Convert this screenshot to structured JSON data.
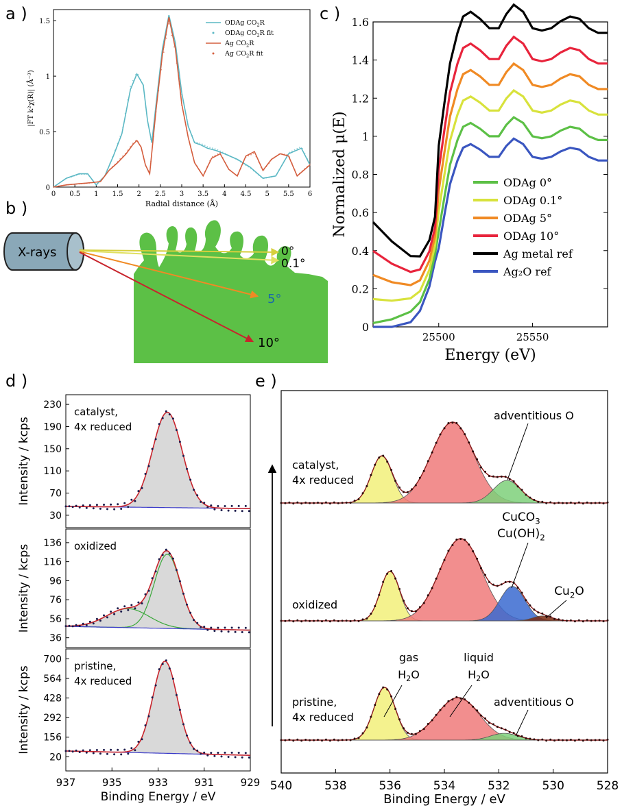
{
  "panel_letters": {
    "a": "a )",
    "b": "b )",
    "c": "c )",
    "d": "d )",
    "e": "e )"
  },
  "chart_data": [
    {
      "panel": "a",
      "type": "line",
      "xlabel": "Radial distance (Å)",
      "ylabel": "|FT k²χ(R)| (Å⁻³)",
      "xlim": [
        0,
        6
      ],
      "ylim": [
        0,
        1.6
      ],
      "xticks": [
        "0",
        "0.5",
        "1",
        "1.5",
        "2",
        "2.5",
        "3",
        "3.5",
        "4",
        "4.5",
        "5",
        "5.5",
        "6"
      ],
      "yticks": [
        "0",
        "0.5",
        "1",
        "1.5"
      ],
      "legend_position": "top-right",
      "legend": [
        "ODAg CO2R",
        "ODAg CO2R fit",
        "Ag CO2R",
        "Ag CO2R fit"
      ],
      "colors": {
        "odag": "#5bb8c4",
        "ag": "#d45e3e"
      },
      "series": [
        {
          "name": "ODAg CO2R",
          "x": [
            0,
            0.3,
            0.6,
            0.8,
            1.0,
            1.2,
            1.4,
            1.6,
            1.8,
            1.95,
            2.1,
            2.2,
            2.3,
            2.4,
            2.55,
            2.7,
            2.85,
            3.0,
            3.15,
            3.3,
            3.45,
            3.6,
            3.8,
            4.0,
            4.3,
            4.6,
            4.9,
            5.2,
            5.5,
            5.8,
            6.0
          ],
          "y": [
            0,
            0.08,
            0.12,
            0.12,
            0.02,
            0.1,
            0.28,
            0.48,
            0.88,
            1.02,
            0.92,
            0.6,
            0.4,
            0.75,
            1.25,
            1.55,
            1.3,
            0.85,
            0.55,
            0.4,
            0.38,
            0.35,
            0.33,
            0.3,
            0.25,
            0.18,
            0.08,
            0.1,
            0.3,
            0.35,
            0.2
          ]
        },
        {
          "name": "Ag CO2R",
          "x": [
            0,
            0.3,
            0.6,
            0.9,
            1.1,
            1.3,
            1.5,
            1.7,
            1.85,
            1.95,
            2.05,
            2.15,
            2.25,
            2.4,
            2.55,
            2.7,
            2.85,
            3.0,
            3.15,
            3.3,
            3.5,
            3.7,
            3.9,
            4.1,
            4.3,
            4.5,
            4.7,
            4.9,
            5.1,
            5.3,
            5.5,
            5.7,
            6.0
          ],
          "y": [
            0,
            0.02,
            0.03,
            0.04,
            0.05,
            0.15,
            0.22,
            0.3,
            0.38,
            0.42,
            0.36,
            0.2,
            0.12,
            0.7,
            1.2,
            1.53,
            1.25,
            0.75,
            0.45,
            0.22,
            0.1,
            0.26,
            0.3,
            0.16,
            0.1,
            0.28,
            0.32,
            0.15,
            0.25,
            0.3,
            0.28,
            0.1,
            0.2
          ]
        }
      ]
    },
    {
      "panel": "b",
      "type": "diagram",
      "source_label": "X-rays",
      "angles": [
        "0°",
        "0.1°",
        "5°",
        "10°"
      ],
      "arrow_colors": [
        "#d6cf3c",
        "#e0e060",
        "#f08a24",
        "#c8242c"
      ]
    },
    {
      "panel": "c",
      "type": "line",
      "xlabel": "Energy (eV)",
      "ylabel": "Normalized  μ(E)",
      "xlim": [
        25465,
        25590
      ],
      "ylim": [
        0,
        1.6
      ],
      "xticks": [
        "25500",
        "25550"
      ],
      "yticks": [
        "0",
        "0.2",
        "0.4",
        "0.6",
        "0.8",
        "1",
        "1.2",
        "1.4",
        "1.6"
      ],
      "legend_position": "center-right",
      "series": [
        {
          "name": "ODAg 0°",
          "color": "#5cc046",
          "offset": 0.0
        },
        {
          "name": "ODAg 0.1°",
          "color": "#d8e23c",
          "offset": 0.1
        },
        {
          "name": "ODAg 5°",
          "color": "#f08a24",
          "offset": 0.2
        },
        {
          "name": "ODAg 10°",
          "color": "#e8243c",
          "offset": 0.3
        },
        {
          "name": "Ag metal ref",
          "color": "#000000",
          "offset": 0.42
        },
        {
          "name": "Ag₂O ref",
          "color": "#3a56c0",
          "offset": -0.08
        }
      ],
      "base_curve": {
        "x": [
          25465,
          25475,
          25485,
          25490,
          25495,
          25498,
          25500,
          25503,
          25506,
          25510,
          25513,
          25517,
          25522,
          25527,
          25532,
          25536,
          25540,
          25545,
          25550,
          25555,
          25560,
          25565,
          25570,
          25575,
          25580,
          25585,
          25590
        ],
        "y": [
          0.02,
          0.04,
          0.08,
          0.13,
          0.25,
          0.38,
          0.5,
          0.68,
          0.85,
          0.98,
          1.05,
          1.07,
          1.04,
          1.0,
          1.0,
          1.06,
          1.1,
          1.07,
          1.0,
          0.99,
          1.0,
          1.03,
          1.05,
          1.04,
          1.0,
          0.98,
          0.98
        ]
      }
    },
    {
      "panel": "d",
      "type": "line",
      "xlabel": "Binding Energy / eV",
      "ylabel": "Intensity / kcps",
      "xlim": [
        937,
        929
      ],
      "xticks": [
        "937",
        "935",
        "933",
        "931",
        "929"
      ],
      "subplots": [
        {
          "label_lines": [
            "catalyst,",
            "4x reduced"
          ],
          "yticks": [
            "230",
            "190",
            "150",
            "110",
            "70",
            "30"
          ],
          "ylim": [
            15,
            240
          ],
          "components": [
            {
              "center": 932.6,
              "amp": 172,
              "width": 0.9
            }
          ],
          "background": [
            46,
            42
          ]
        },
        {
          "label_lines": [
            "oxidized"
          ],
          "yticks": [
            "136",
            "116",
            "96",
            "76",
            "56",
            "36"
          ],
          "ylim": [
            30,
            146
          ],
          "components": [
            {
              "center": 932.6,
              "amp": 78,
              "width": 0.8
            },
            {
              "center": 934.3,
              "amp": 20,
              "width": 1.3
            }
          ],
          "background": [
            48,
            44
          ]
        },
        {
          "label_lines": [
            "pristine,",
            "4x reduced"
          ],
          "yticks": [
            "700",
            "564",
            "428",
            "292",
            "156",
            "20"
          ],
          "ylim": [
            -50,
            740
          ],
          "components": [
            {
              "center": 932.7,
              "amp": 640,
              "width": 0.75
            }
          ],
          "background": [
            60,
            30
          ]
        }
      ]
    },
    {
      "panel": "e",
      "type": "line",
      "xlabel": "Binding Energy / eV",
      "xlim": [
        540,
        528
      ],
      "xticks": [
        "540",
        "538",
        "536",
        "534",
        "532",
        "530",
        "528"
      ],
      "subplots": [
        {
          "label_lines": [
            "catalyst,",
            "4x reduced"
          ],
          "components": [
            {
              "name": "gas H2O",
              "center": 536.3,
              "amp": 0.58,
              "width": 0.55,
              "color": "#f2f07a"
            },
            {
              "name": "liquid H2O",
              "center": 533.7,
              "amp": 1.0,
              "width": 1.1,
              "color": "#f07a7a"
            },
            {
              "name": "adventitious O",
              "center": 531.7,
              "amp": 0.28,
              "width": 0.7,
              "color": "#7ed07a"
            }
          ],
          "annotations": [
            "adventitious O"
          ]
        },
        {
          "label_lines": [
            "oxidized"
          ],
          "components": [
            {
              "name": "gas H2O",
              "center": 536.0,
              "amp": 0.6,
              "width": 0.5,
              "color": "#f2f07a"
            },
            {
              "name": "liquid H2O",
              "center": 533.4,
              "amp": 1.0,
              "width": 1.1,
              "color": "#f07a7a"
            },
            {
              "name": "CuCO3 Cu(OH)2",
              "center": 531.5,
              "amp": 0.42,
              "width": 0.65,
              "color": "#3a6ad0"
            },
            {
              "name": "Cu2O",
              "center": 530.4,
              "amp": 0.06,
              "width": 0.5,
              "color": "#7a2a10"
            }
          ],
          "annotations": [
            "CuCO3",
            "Cu(OH)2",
            "Cu2O"
          ]
        },
        {
          "label_lines": [
            "pristine,",
            "4x reduced"
          ],
          "components": [
            {
              "name": "gas H2O",
              "center": 536.2,
              "amp": 0.62,
              "width": 0.55,
              "color": "#f2f07a"
            },
            {
              "name": "liquid H2O",
              "center": 533.5,
              "amp": 0.5,
              "width": 1.1,
              "color": "#f07a7a"
            },
            {
              "name": "adventitious O",
              "center": 531.8,
              "amp": 0.08,
              "width": 0.7,
              "color": "#7ed07a"
            }
          ],
          "annotations": [
            "gas",
            "H2O",
            "liquid",
            "H2O",
            "adventitious O"
          ]
        }
      ]
    }
  ]
}
